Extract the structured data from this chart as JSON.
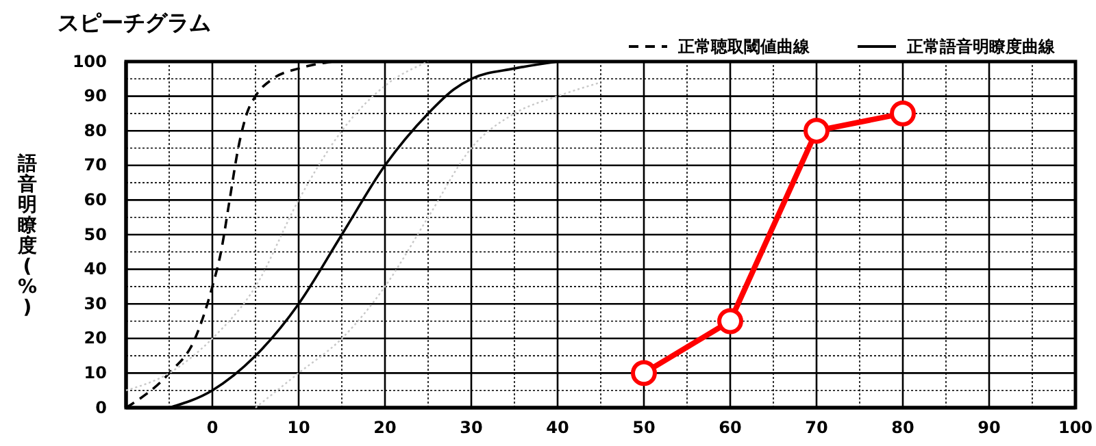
{
  "chart_data": {
    "type": "line",
    "title": "スピーチグラム",
    "ylabel": "語音明瞭度(%)",
    "xlim": [
      -10,
      100
    ],
    "ylim": [
      0,
      100
    ],
    "xticks": [
      0,
      10,
      20,
      30,
      40,
      50,
      60,
      70,
      80,
      90,
      100
    ],
    "yticks": [
      0,
      10,
      20,
      30,
      40,
      50,
      60,
      70,
      80,
      90,
      100
    ],
    "grid": true,
    "legend": "top right",
    "series": [
      {
        "name": "正常聴取閾値曲線",
        "color": "#000000",
        "line_style": "dashed",
        "marker": "none",
        "x": [
          -10,
          -5,
          -2,
          0,
          1,
          2,
          3,
          4,
          5,
          7,
          10,
          14
        ],
        "values": [
          0,
          10,
          20,
          35,
          45,
          60,
          75,
          85,
          90,
          95,
          98,
          100
        ]
      },
      {
        "name": "正常語音明瞭度曲線",
        "color": "#000000",
        "line_style": "solid",
        "marker": "none",
        "x": [
          -5,
          0,
          5,
          10,
          15,
          20,
          25,
          28,
          30,
          35,
          40
        ],
        "values": [
          0,
          5,
          15,
          30,
          50,
          70,
          85,
          92,
          95,
          98,
          100
        ]
      },
      {
        "color": "#c8c8c8",
        "line_style": "dotted",
        "marker": "none",
        "x": [
          -10,
          -5,
          0,
          5,
          10,
          15,
          20,
          25
        ],
        "values": [
          5,
          10,
          20,
          35,
          60,
          80,
          93,
          100
        ]
      },
      {
        "color": "#c8c8c8",
        "line_style": "dotted",
        "marker": "none",
        "x": [
          5,
          10,
          15,
          20,
          25,
          30,
          35,
          40,
          45
        ],
        "values": [
          0,
          10,
          20,
          35,
          55,
          75,
          85,
          90,
          94
        ]
      },
      {
        "color": "#ff0000",
        "line_style": "solid",
        "marker": "circle",
        "x": [
          50,
          60,
          70,
          80
        ],
        "values": [
          10,
          25,
          80,
          85
        ]
      }
    ]
  }
}
